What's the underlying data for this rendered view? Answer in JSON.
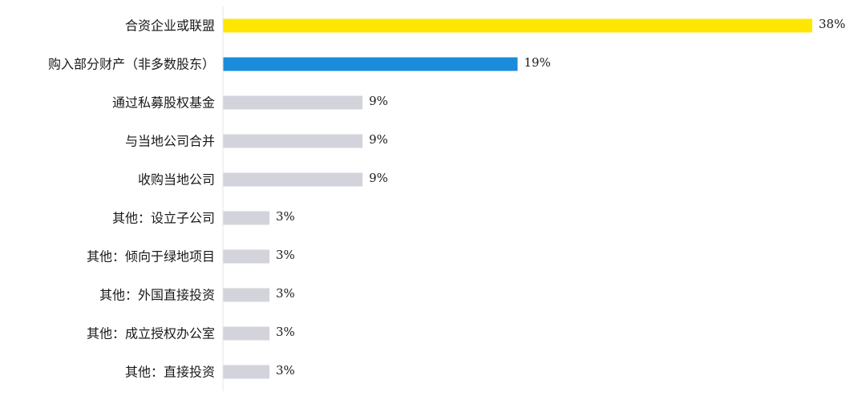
{
  "chart_data": {
    "type": "bar",
    "orientation": "horizontal",
    "categories": [
      "合资企业或联盟",
      "购入部分财产（非多数股东）",
      "通过私募股权基金",
      "与当地公司合并",
      "收购当地公司",
      "其他：设立子公司",
      "其他：倾向于绿地项目",
      "其他：外国直接投资",
      "其他：成立授权办公室",
      "其他：直接投资"
    ],
    "values": [
      38,
      19,
      9,
      9,
      9,
      3,
      3,
      3,
      3,
      3
    ],
    "value_labels": [
      "38%",
      "19%",
      "9%",
      "9%",
      "9%",
      "3%",
      "3%",
      "3%",
      "3%",
      "3%"
    ],
    "value_unit": "%",
    "xlim": [
      0,
      38
    ],
    "grid": false,
    "legend": "none",
    "colors": {
      "highlight_primary": "#FFE600",
      "highlight_secondary": "#1A8CDB",
      "default": "#D3D3DC",
      "axis_line": "#E6E6E6"
    },
    "bar_colors": [
      "#FFE600",
      "#1A8CDB",
      "#D3D3DC",
      "#D3D3DC",
      "#D3D3DC",
      "#D3D3DC",
      "#D3D3DC",
      "#D3D3DC",
      "#D3D3DC",
      "#D3D3DC"
    ]
  }
}
